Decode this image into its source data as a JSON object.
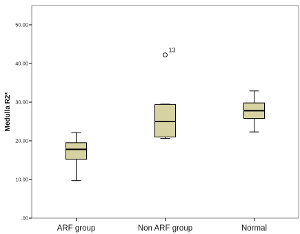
{
  "chart_data": {
    "type": "box",
    "categories": [
      "ARF group",
      "Non ARF group",
      "Normal"
    ],
    "boxes": [
      {
        "category": "ARF group",
        "whisker_low": 9.7,
        "q1": 15.2,
        "median": 17.8,
        "q3": 19.5,
        "whisker_high": 22.1,
        "outliers": []
      },
      {
        "category": "Non ARF group",
        "whisker_low": 20.6,
        "q1": 21.0,
        "median": 25.0,
        "q3": 29.4,
        "whisker_high": 29.5,
        "outliers": [
          {
            "value": 42.2,
            "label": "13"
          }
        ]
      },
      {
        "category": "Normal",
        "whisker_low": 22.3,
        "q1": 25.8,
        "median": 27.8,
        "q3": 29.8,
        "whisker_high": 32.9,
        "outliers": []
      }
    ],
    "ylabel": "Medulla R2*",
    "xlabel": "",
    "ylim": [
      0,
      55
    ],
    "yticks": [
      0,
      10,
      20,
      30,
      40,
      50
    ],
    "ytick_labels": [
      ".00",
      "10.00",
      "20.00",
      "30.00",
      "40.00",
      "50.00"
    ],
    "box_fill": "#d7d2a1",
    "box_stroke": "#000000",
    "frame_color": "#8a8a8a",
    "grid": false,
    "background": "#ffffff"
  }
}
